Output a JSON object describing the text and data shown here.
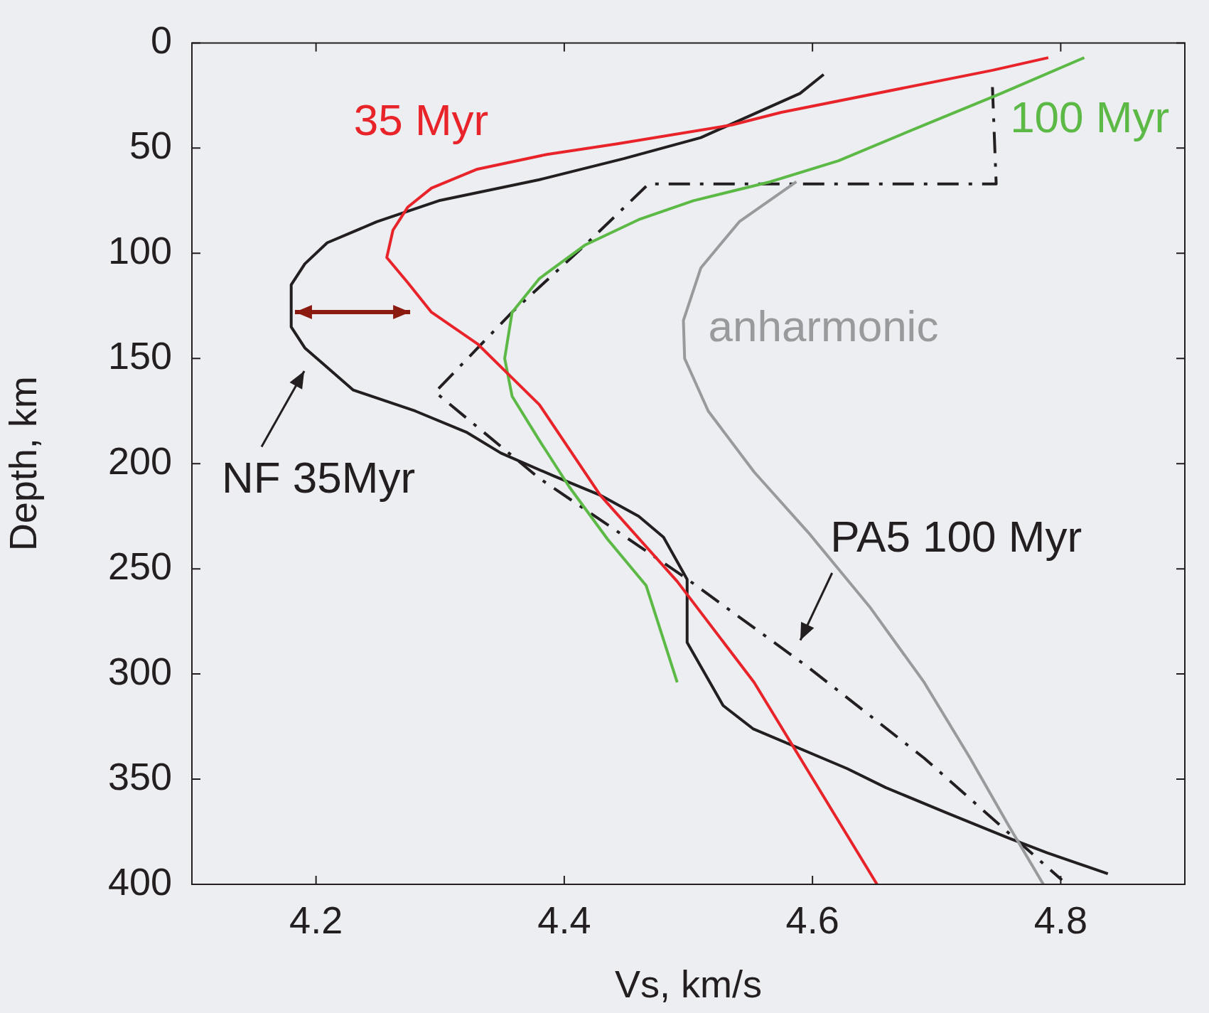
{
  "chart_data": {
    "type": "line",
    "xlabel": "Vs, km/s",
    "ylabel": "Depth, km",
    "xlim": [
      4.1,
      4.9
    ],
    "xticks": [
      4.2,
      4.4,
      4.6,
      4.8
    ],
    "ylim": [
      400,
      0
    ],
    "yticks": [
      0,
      50,
      100,
      150,
      200,
      250,
      300,
      350,
      400
    ],
    "grid": false,
    "legend": false,
    "marker": "none",
    "annotations": [
      "35 Myr",
      "100 Myr",
      "anharmonic",
      "NF 35Myr",
      "PA5 100 Myr"
    ],
    "series": [
      {
        "color": "#e8242a",
        "line_style": "solid",
        "x": [
          4.79,
          4.745,
          4.575,
          4.535,
          4.442,
          4.386,
          4.33,
          4.293,
          4.274,
          4.262,
          4.257,
          4.274,
          4.293,
          4.33,
          4.38,
          4.429,
          4.491,
          4.553,
          4.652
        ],
        "values": [
          7,
          13,
          33,
          39,
          48,
          53,
          60,
          69,
          78,
          89,
          102,
          114,
          128,
          143,
          172,
          215,
          256,
          304,
          400
        ]
      },
      {
        "color": "#5cb946",
        "line_style": "solid",
        "x": [
          4.819,
          4.752,
          4.69,
          4.621,
          4.566,
          4.504,
          4.46,
          4.417,
          4.38,
          4.358,
          4.352,
          4.358,
          4.38,
          4.404,
          4.435,
          4.466,
          4.491
        ],
        "values": [
          7,
          24,
          39,
          56,
          66,
          75,
          84,
          96,
          112,
          128,
          150,
          168,
          189,
          211,
          236,
          258,
          304
        ]
      },
      {
        "color": "#999a9c",
        "line_style": "solid",
        "x": [
          4.587,
          4.541,
          4.51,
          4.496,
          4.497,
          4.516,
          4.553,
          4.597,
          4.646,
          4.69,
          4.727,
          4.758,
          4.786
        ],
        "values": [
          66,
          85,
          107,
          132,
          150,
          175,
          204,
          233,
          268,
          304,
          340,
          372,
          400
        ]
      },
      {
        "color": "#231f20",
        "line_style": "solid",
        "x": [
          4.609,
          4.59,
          4.51,
          4.448,
          4.38,
          4.299,
          4.249,
          4.209,
          4.191,
          4.18,
          4.18,
          4.191,
          4.23,
          4.28,
          4.321,
          4.349,
          4.392,
          4.429,
          4.46,
          4.48,
          4.499,
          4.499,
          4.528,
          4.552,
          4.628,
          4.659,
          4.708,
          4.758,
          4.789,
          4.838
        ],
        "values": [
          15,
          24,
          45,
          55,
          65,
          75,
          85,
          95,
          105,
          115,
          135,
          145,
          165,
          175,
          185,
          195,
          206,
          215,
          225,
          235,
          255,
          285,
          315,
          326,
          345,
          354,
          366,
          378,
          385,
          395
        ]
      },
      {
        "color": "#231f20",
        "line_style": "dashed",
        "x": [
          4.745,
          4.748,
          4.468,
          4.417,
          4.358,
          4.296,
          4.38,
          4.497,
          4.597,
          4.69,
          4.801
        ],
        "values": [
          21,
          67,
          67,
          96,
          128,
          166,
          207,
          254,
          297,
          340,
          398
        ]
      }
    ]
  }
}
